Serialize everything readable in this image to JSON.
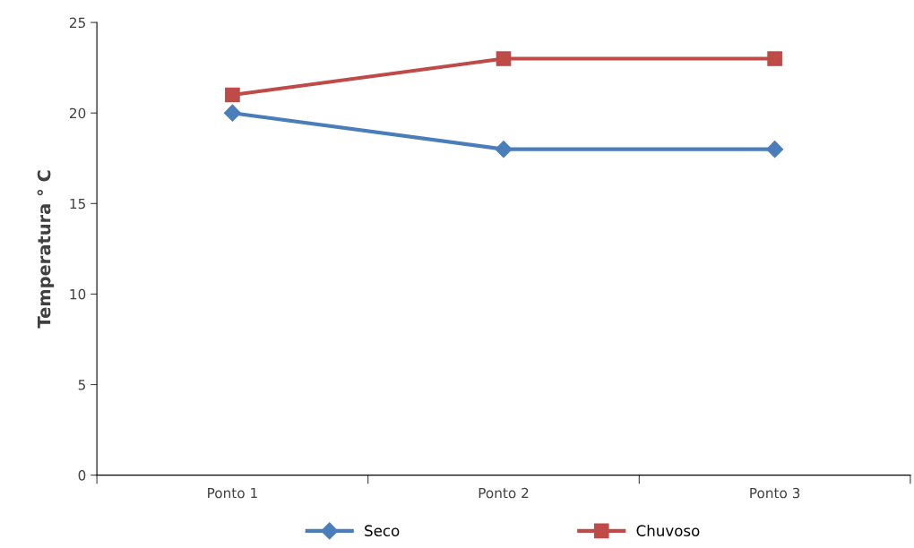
{
  "chart_data": {
    "type": "line",
    "ylabel": "Temperatura ° C",
    "categories": [
      "Ponto 1",
      "Ponto 2",
      "Ponto 3"
    ],
    "series": [
      {
        "name": "Seco",
        "color": "#4a7ebb",
        "marker": "diamond",
        "values": [
          20,
          18,
          18
        ]
      },
      {
        "name": "Chuvoso",
        "color": "#be4b48",
        "marker": "square",
        "values": [
          21,
          23,
          23
        ]
      }
    ],
    "ylim": [
      0,
      25
    ],
    "yticks": [
      0,
      5,
      10,
      15,
      20,
      25
    ],
    "grid": false,
    "legend": "bottom",
    "line_style": "solid"
  }
}
